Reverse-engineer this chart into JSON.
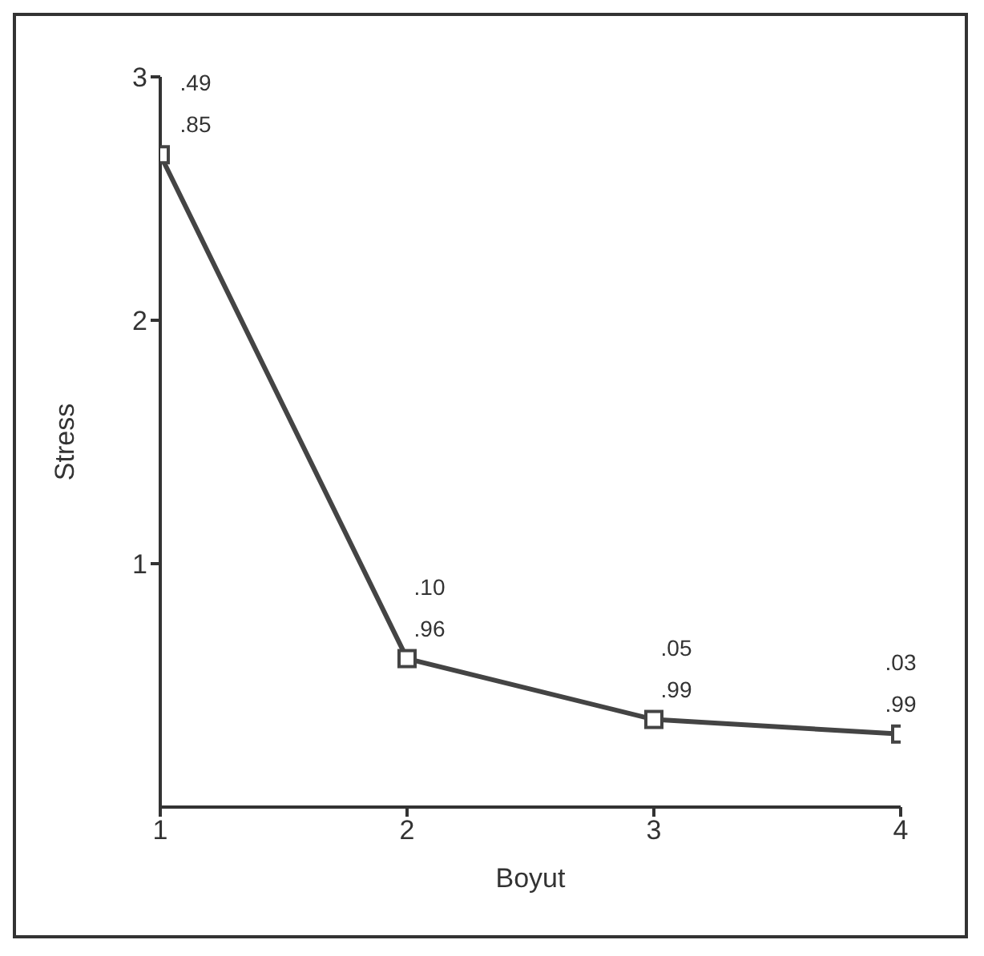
{
  "chart_data": {
    "type": "line",
    "xlabel": "Boyut",
    "ylabel": "Stress",
    "x": [
      1,
      2,
      3,
      4
    ],
    "values": [
      2.68,
      0.61,
      0.36,
      0.3
    ],
    "color": "#444444",
    "xlim": [
      1,
      4
    ],
    "xticks": [
      1,
      2,
      3,
      4
    ],
    "ylim": [
      0,
      3
    ],
    "yticks": [
      1,
      2,
      3
    ],
    "marker": "square",
    "line_style": "solid",
    "annotations": [
      {
        "text": ".49",
        "x": 1,
        "y": 2.68
      },
      {
        "text": ".85",
        "x": 1,
        "y": 2.68
      },
      {
        "text": ".10",
        "x": 2,
        "y": 0.61
      },
      {
        "text": ".96",
        "x": 2,
        "y": 0.61
      },
      {
        "text": ".05",
        "x": 3,
        "y": 0.36
      },
      {
        "text": ".99",
        "x": 3,
        "y": 0.36
      },
      {
        "text": ".03",
        "x": 4,
        "y": 0.3
      },
      {
        "text": ".99",
        "x": 4,
        "y": 0.3
      }
    ]
  }
}
